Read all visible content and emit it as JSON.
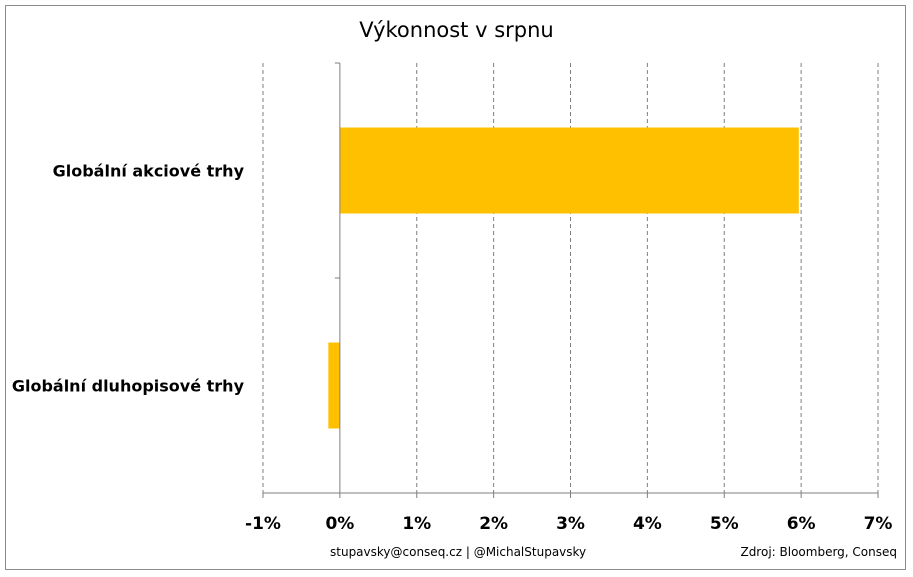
{
  "chart_data": {
    "type": "bar",
    "orientation": "horizontal",
    "title": "Výkonnost v srpnu",
    "categories": [
      "Globální akciové trhy",
      "Globální dluhopisové trhy"
    ],
    "values": [
      5.97,
      -0.15
    ],
    "unit": "%",
    "xlim": [
      -1,
      7
    ],
    "xticks": [
      -1,
      0,
      1,
      2,
      3,
      4,
      5,
      6,
      7
    ],
    "xtick_labels": [
      "-1%",
      "0%",
      "1%",
      "2%",
      "3%",
      "4%",
      "5%",
      "6%",
      "7%"
    ],
    "grid": "vertical-dashed",
    "bar_color": "#FFC000"
  },
  "footer": {
    "contact": "stupavsky@conseq.cz  |  @MichalStupavsky",
    "source": "Zdroj: Bloomberg, Conseq"
  }
}
